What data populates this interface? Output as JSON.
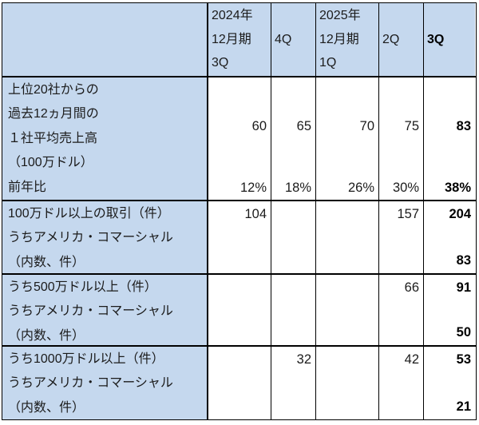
{
  "colors": {
    "header_bg": "#C5D8EE",
    "border": "#000000",
    "text": "#1B1B1B",
    "bold_column_text": "#000000"
  },
  "table": {
    "header": {
      "cols": [
        {
          "label": "2024年\n12月期\n3Q"
        },
        {
          "label": "4Q"
        },
        {
          "label": "2025年\n12月期\n1Q"
        },
        {
          "label": "2Q"
        },
        {
          "label": "3Q"
        }
      ]
    },
    "sections": [
      {
        "label": "上位20社からの\n過去12ヵ月間の\n１社平均売上高\n（100万ドル）\n前年比",
        "values": [
          "60",
          "65",
          "70",
          "75",
          "83"
        ],
        "pct": [
          "12%",
          "18%",
          "26%",
          "30%",
          "38%"
        ]
      },
      {
        "label": "100万ドル以上の取引（件）\nうちアメリカ・コマーシャル\n（内数、件）",
        "top": [
          "104",
          "",
          "",
          "157",
          "204"
        ],
        "bottom": [
          "",
          "",
          "",
          "",
          "83"
        ]
      },
      {
        "label": "うち500万ドル以上（件）\nうちアメリカ・コマーシャル\n（内数、件）",
        "top": [
          "",
          "",
          "",
          "66",
          "91"
        ],
        "bottom": [
          "",
          "",
          "",
          "",
          "50"
        ]
      },
      {
        "label": "うち1000万ドル以上（件）\nうちアメリカ・コマーシャル\n（内数、件）",
        "top": [
          "",
          "32",
          "",
          "42",
          "53"
        ],
        "bottom": [
          "",
          "",
          "",
          "",
          "21"
        ]
      }
    ]
  },
  "chart_data": {
    "type": "table",
    "columns": [
      "",
      "2024年12月期 3Q",
      "4Q",
      "2025年12月期 1Q",
      "2Q",
      "3Q"
    ],
    "rows": [
      {
        "label": "上位20社からの過去12ヵ月間の１社平均売上高（100万ドル）",
        "values": [
          60,
          65,
          70,
          75,
          83
        ]
      },
      {
        "label": "前年比",
        "values": [
          "12%",
          "18%",
          "26%",
          "30%",
          "38%"
        ]
      },
      {
        "label": "100万ドル以上の取引（件）",
        "values": [
          104,
          null,
          null,
          157,
          204
        ]
      },
      {
        "label": "うちアメリカ・コマーシャル（内数、件）",
        "values": [
          null,
          null,
          null,
          null,
          83
        ]
      },
      {
        "label": "うち500万ドル以上（件）",
        "values": [
          null,
          null,
          null,
          66,
          91
        ]
      },
      {
        "label": "うちアメリカ・コマーシャル（内数、件）",
        "values": [
          null,
          null,
          null,
          null,
          50
        ]
      },
      {
        "label": "うち1000万ドル以上（件）",
        "values": [
          null,
          32,
          null,
          42,
          53
        ]
      },
      {
        "label": "うちアメリカ・コマーシャル（内数、件）",
        "values": [
          null,
          null,
          null,
          null,
          21
        ]
      }
    ],
    "notes": "Last column (3Q 2025) rendered in bold"
  }
}
